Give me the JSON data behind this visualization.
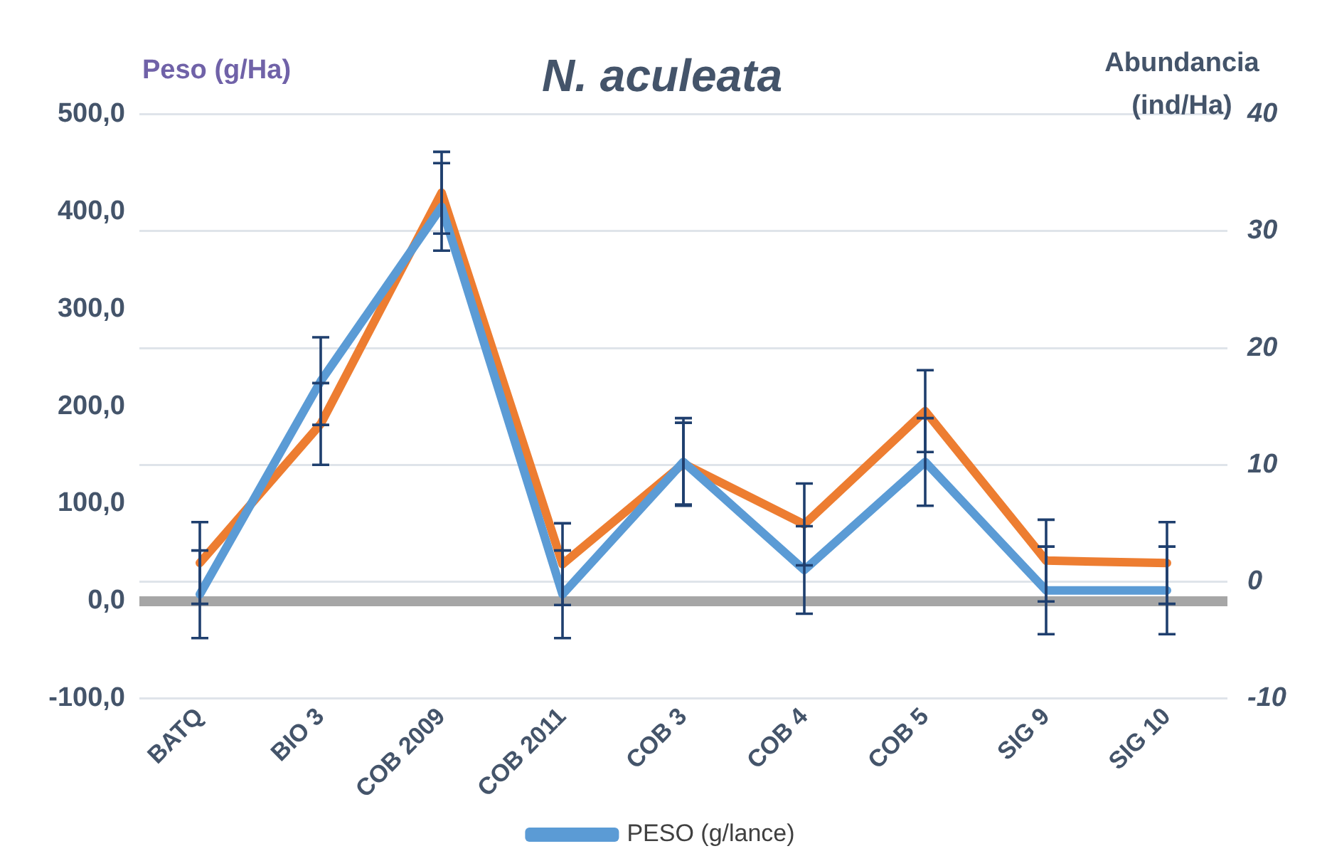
{
  "chart_data": {
    "type": "line",
    "title": "N. aculeata",
    "ylabel": "Peso (g/Ha)",
    "y2label": "Abundancia (ind/Ha)",
    "categories": [
      "BATQ",
      "BIO 3",
      "COB 2009",
      "COB 2011",
      "COB 3",
      "COB 4",
      "COB 5",
      "SIG 9",
      "SIG 10"
    ],
    "series": [
      {
        "name": "PESO (g/lance)",
        "color": "#5b9bd5",
        "values": [
          7,
          226,
          405,
          7,
          143,
          32,
          143,
          11,
          11
        ],
        "errors": [
          45,
          45,
          45,
          45,
          45,
          45,
          45,
          45,
          45
        ]
      },
      {
        "color": "#ed7d31",
        "axis": "y2",
        "values": [
          1.6,
          13.5,
          33.3,
          1.5,
          10.1,
          4.9,
          14.6,
          1.8,
          1.6
        ],
        "errors": [
          3.5,
          3.5,
          3.5,
          3.5,
          3.5,
          3.5,
          3.5,
          3.5,
          3.5
        ]
      }
    ],
    "ylim": [
      -100,
      500
    ],
    "yticks": [
      {
        "value": -100,
        "label": "-100,0"
      },
      {
        "value": 0,
        "label": "0,0"
      },
      {
        "value": 100,
        "label": "100,0"
      },
      {
        "value": 200,
        "label": "200,0"
      },
      {
        "value": 300,
        "label": "300,0"
      },
      {
        "value": 400,
        "label": "400,0"
      },
      {
        "value": 500,
        "label": "500,0"
      }
    ],
    "y2lim": [
      -10,
      40
    ],
    "y2ticks": [
      -10,
      0,
      10,
      20,
      30,
      40
    ],
    "grid": true,
    "legend": "bottom",
    "marker": "none",
    "line_style": "solid"
  }
}
